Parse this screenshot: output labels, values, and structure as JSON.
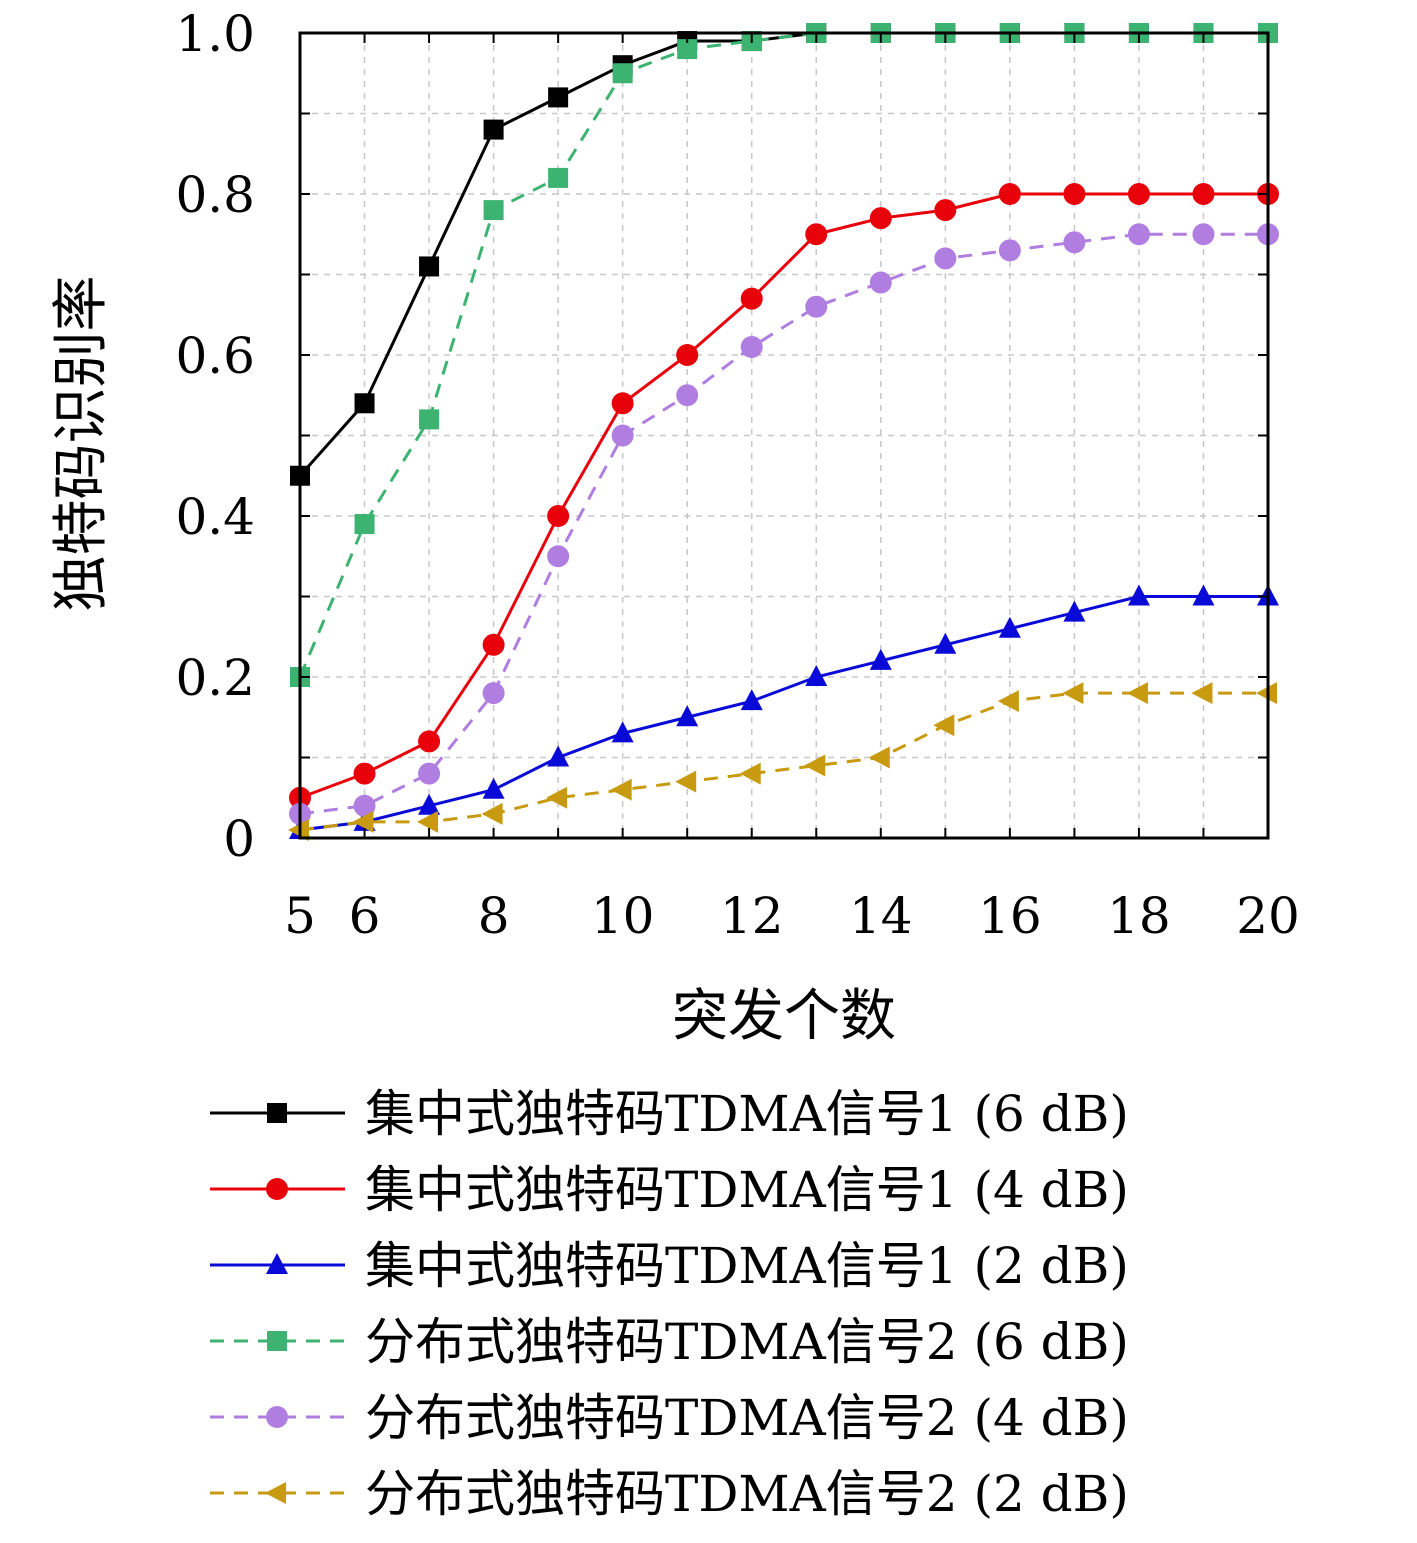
{
  "chart_data": {
    "type": "line",
    "xlabel": "突发个数",
    "ylabel": "独特码识别率",
    "xlim": [
      5,
      20
    ],
    "ylim": [
      0,
      1.0
    ],
    "x_ticks": [
      5,
      6,
      8,
      10,
      12,
      14,
      16,
      18,
      20
    ],
    "x_tick_labels": [
      "5",
      "6",
      "8",
      "10",
      "12",
      "14",
      "16",
      "18",
      "20"
    ],
    "y_ticks": [
      0,
      0.2,
      0.4,
      0.6,
      0.8,
      1.0
    ],
    "y_tick_labels": [
      "0",
      "0.2",
      "0.4",
      "0.6",
      "0.8",
      "1.0"
    ],
    "grid": true,
    "legend_position": "bottom",
    "x": [
      5,
      6,
      7,
      8,
      9,
      10,
      11,
      12,
      13,
      14,
      15,
      16,
      17,
      18,
      19,
      20
    ],
    "series": [
      {
        "name": "集中式独特码TDMA信号1 (6 dB)",
        "color": "#000000",
        "dash": false,
        "marker": "square",
        "values": [
          0.45,
          0.54,
          0.71,
          0.88,
          0.92,
          0.96,
          0.99,
          0.99,
          1.0,
          1.0,
          1.0,
          1.0,
          1.0,
          1.0,
          1.0,
          1.0
        ]
      },
      {
        "name": "集中式独特码TDMA信号1 (4 dB)",
        "color": "#e8000b",
        "dash": false,
        "marker": "circle",
        "values": [
          0.05,
          0.08,
          0.12,
          0.24,
          0.4,
          0.54,
          0.6,
          0.67,
          0.75,
          0.77,
          0.78,
          0.8,
          0.8,
          0.8,
          0.8,
          0.8
        ]
      },
      {
        "name": "集中式独特码TDMA信号1 (2 dB)",
        "color": "#0a0ad8",
        "dash": false,
        "marker": "triangle-up",
        "values": [
          0.01,
          0.02,
          0.04,
          0.06,
          0.1,
          0.13,
          0.15,
          0.17,
          0.2,
          0.22,
          0.24,
          0.26,
          0.28,
          0.3,
          0.3,
          0.3
        ]
      },
      {
        "name": "分布式独特码TDMA信号2 (6 dB)",
        "color": "#3cb371",
        "dash": true,
        "marker": "square",
        "values": [
          0.2,
          0.39,
          0.52,
          0.78,
          0.82,
          0.95,
          0.98,
          0.99,
          1.0,
          1.0,
          1.0,
          1.0,
          1.0,
          1.0,
          1.0,
          1.0
        ]
      },
      {
        "name": "分布式独特码TDMA信号2 (4 dB)",
        "color": "#b07ee0",
        "dash": true,
        "marker": "circle",
        "values": [
          0.03,
          0.04,
          0.08,
          0.18,
          0.35,
          0.5,
          0.55,
          0.61,
          0.66,
          0.69,
          0.72,
          0.73,
          0.74,
          0.75,
          0.75,
          0.75
        ]
      },
      {
        "name": "分布式独特码TDMA信号2 (2 dB)",
        "color": "#c89a10",
        "dash": true,
        "marker": "triangle-left",
        "values": [
          0.01,
          0.02,
          0.02,
          0.03,
          0.05,
          0.06,
          0.07,
          0.08,
          0.09,
          0.1,
          0.14,
          0.17,
          0.18,
          0.18,
          0.18,
          0.18
        ]
      }
    ]
  }
}
